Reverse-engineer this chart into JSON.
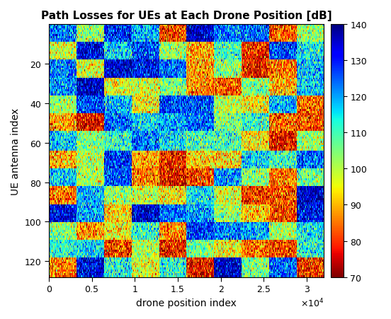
{
  "title": "Path Losses for UEs at Each Drone Position [dB]",
  "xlabel": "drone position index",
  "ylabel": "UE antenna index",
  "xlabel_sci": "\\times 10^{4}",
  "x_max": 32000,
  "y_max": 128,
  "colorbar_min": 70,
  "colorbar_max": 140,
  "colorbar_ticks": [
    70,
    80,
    90,
    100,
    110,
    120,
    130,
    140
  ],
  "xticks": [
    0,
    5000,
    10000,
    15000,
    20000,
    25000,
    30000
  ],
  "xtick_labels": [
    "0",
    "0.5",
    "1",
    "1.5",
    "2",
    "2.5",
    "3"
  ],
  "yticks": [
    20,
    40,
    60,
    80,
    100,
    120
  ],
  "seed": 42,
  "n_cols": 32000,
  "n_rows": 128,
  "background_color": "#ffffff",
  "title_fontsize": 11,
  "label_fontsize": 10
}
